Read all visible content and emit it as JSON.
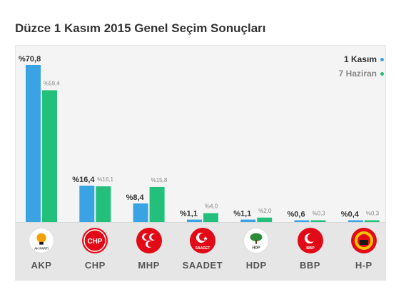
{
  "title": "Düzce 1 Kasım 2015 Genel Seçim Sonuçları",
  "chart_data": {
    "type": "bar",
    "title": "Düzce 1 Kasım 2015 Genel Seçim Sonuçları",
    "categories": [
      "AKP",
      "CHP",
      "MHP",
      "SAADET",
      "HDP",
      "BBP",
      "H-P"
    ],
    "series": [
      {
        "name": "1 Kasım",
        "color": "#3aa3e3",
        "values": [
          70.8,
          16.4,
          8.4,
          1.1,
          1.1,
          0.6,
          0.4
        ],
        "labels": [
          "%70,8",
          "%16,4",
          "%8,4",
          "%1,1",
          "%1,1",
          "%0,6",
          "%0,4"
        ]
      },
      {
        "name": "7 Haziran",
        "color": "#22c07a",
        "values": [
          59.4,
          16.1,
          15.8,
          4.0,
          2.0,
          0.3,
          0.3
        ],
        "labels": [
          "%59,4",
          "%16,1",
          "%15,8",
          "%4,0",
          "%2,0",
          "%0,3",
          "%0,3"
        ]
      }
    ],
    "ylim": [
      0,
      70.8
    ],
    "legend": "top-right",
    "grid": false
  },
  "logos": [
    {
      "party": "AKP",
      "icon": "akp-lightbulb-icon",
      "text": "AK PARTİ",
      "bg": "#ffffff",
      "fg": "#f4a000"
    },
    {
      "party": "CHP",
      "icon": "chp-six-arrows-icon",
      "text": "CHP",
      "bg": "#e30a17",
      "fg": "#ffffff"
    },
    {
      "party": "MHP",
      "icon": "mhp-three-crescents-icon",
      "text": "",
      "bg": "#e30a17",
      "fg": "#ffffff"
    },
    {
      "party": "SAADET",
      "icon": "saadet-crescent-star-icon",
      "text": "SAADET",
      "bg": "#e30a17",
      "fg": "#ffffff"
    },
    {
      "party": "HDP",
      "icon": "hdp-tree-icon",
      "text": "HDP",
      "bg": "#ffffff",
      "fg": "#2e8b3a"
    },
    {
      "party": "BBP",
      "icon": "bbp-crescent-icon",
      "text": "BBP",
      "bg": "#e30a17",
      "fg": "#ffffff"
    },
    {
      "party": "H-P",
      "icon": "hp-emblem-icon",
      "text": "",
      "bg": "#e30a17",
      "fg": "#f5c400"
    }
  ]
}
